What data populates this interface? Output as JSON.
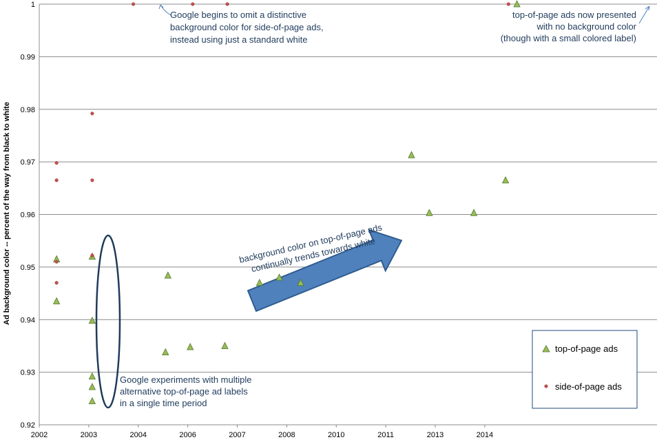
{
  "chart_data": {
    "type": "scatter",
    "ylabel": "Ad background  color -- percent of the way from black to white",
    "xlabel": "",
    "ylim": [
      0.92,
      1.0
    ],
    "xlim": [
      2002.0,
      2014.48
    ],
    "y_ticks": [
      "0.92",
      "0.93",
      "0.94",
      "0.95",
      "0.96",
      "0.97",
      "0.98",
      "0.99",
      "1"
    ],
    "x_ticks": [
      {
        "label": "2002",
        "x": 2002.0
      },
      {
        "label": "2003",
        "x": 2003.0
      },
      {
        "label": "2004",
        "x": 2004.0
      },
      {
        "label": "2006",
        "x": 2005.0
      },
      {
        "label": "2007",
        "x": 2006.0
      },
      {
        "label": "2008",
        "x": 2007.0
      },
      {
        "label": "2010",
        "x": 2008.0
      },
      {
        "label": "2011",
        "x": 2009.0
      },
      {
        "label": "2013",
        "x": 2010.0
      },
      {
        "label": "2014",
        "x": 2011.0
      }
    ],
    "grid": "horizontal",
    "legend_position": "bottom-right",
    "series": [
      {
        "name": "top-of-page ads",
        "marker": "triangle",
        "color": "#9bbb59",
        "edge_color": "#4f7a28",
        "points": [
          [
            2002.35,
            0.9515
          ],
          [
            2002.35,
            0.9435
          ],
          [
            2003.07,
            0.952
          ],
          [
            2003.07,
            0.9398
          ],
          [
            2003.07,
            0.9292
          ],
          [
            2003.07,
            0.9272
          ],
          [
            2003.07,
            0.9245
          ],
          [
            2004.55,
            0.9338
          ],
          [
            2004.6,
            0.9484
          ],
          [
            2005.05,
            0.9348
          ],
          [
            2005.75,
            0.935
          ],
          [
            2006.45,
            0.947
          ],
          [
            2006.85,
            0.948
          ],
          [
            2007.28,
            0.947
          ],
          [
            2009.52,
            0.9713
          ],
          [
            2009.88,
            0.9603
          ],
          [
            2010.78,
            0.9603
          ],
          [
            2011.42,
            0.9665
          ],
          [
            2011.65,
            1.0
          ]
        ]
      },
      {
        "name": "side-of-page ads",
        "marker": "circle",
        "color": "#c0504d",
        "edge_color": "#9c2b28",
        "points": [
          [
            2002.35,
            0.9698
          ],
          [
            2002.35,
            0.9665
          ],
          [
            2002.35,
            0.951
          ],
          [
            2002.35,
            0.947
          ],
          [
            2003.07,
            0.9792
          ],
          [
            2003.07,
            0.9665
          ],
          [
            2003.07,
            0.9522
          ],
          [
            2003.9,
            1.0
          ],
          [
            2005.1,
            1.0
          ],
          [
            2005.8,
            1.0
          ],
          [
            2011.48,
            1.0
          ]
        ]
      }
    ],
    "annotations": [
      {
        "id": "side-white",
        "lines": [
          "Google begins to omit a distinctive",
          "background color for side-of-page ads,",
          "instead using just a standard white"
        ]
      },
      {
        "id": "top-white",
        "lines": [
          "top-of-page ads now presented",
          "with no background color",
          "(though with a small colored label)"
        ]
      },
      {
        "id": "trend",
        "lines": [
          "background color on top-of-page ads",
          "continually trends towards white"
        ]
      },
      {
        "id": "experiments",
        "lines": [
          "Google experiments with multiple",
          "alternative top-of-page ad labels",
          "in a single time period"
        ]
      }
    ]
  }
}
